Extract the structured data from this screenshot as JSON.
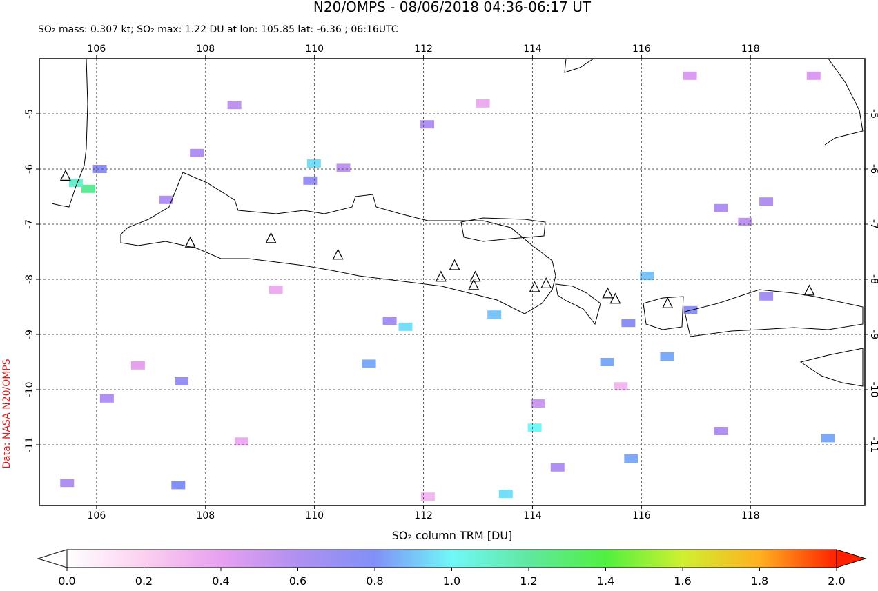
{
  "chart_data": {
    "type": "map",
    "title": "N20/OMPS - 08/06/2018 04:36-06:17 UT",
    "subtitle": "SO₂ mass: 0.307 kt; SO₂ max: 1.22 DU at lon: 105.85 lat: -6.36 ; 06:16UTC",
    "colorbar_label": "SO₂ column TRM [DU]",
    "credit": "Data: NASA N20/OMPS",
    "xlim": [
      104.95,
      120.1
    ],
    "ylim": [
      -12.1,
      -4
    ],
    "xticks": [
      106,
      108,
      110,
      112,
      114,
      116,
      118
    ],
    "yticks": [
      -5,
      -6,
      -7,
      -8,
      -9,
      -10,
      -11
    ],
    "grid": true,
    "clim": [
      0,
      2
    ],
    "colormap": [
      "#ffffff",
      "#fcd0f0",
      "#e8a0f0",
      "#b090f0",
      "#8090f8",
      "#70f8f8",
      "#60e8a0",
      "#50f040",
      "#d0f030",
      "#ffb020",
      "#ff2000"
    ],
    "colorbar_ticks": [
      {
        "value": 0,
        "label": "0.0"
      },
      {
        "value": 0.2,
        "label": "0.2"
      },
      {
        "value": 0.4,
        "label": "0.4"
      },
      {
        "value": 0.6,
        "label": "0.6"
      },
      {
        "value": 0.8,
        "label": "0.8"
      },
      {
        "value": 1,
        "label": "1.0"
      },
      {
        "value": 1.2,
        "label": "1.2"
      },
      {
        "value": 1.4,
        "label": "1.4"
      },
      {
        "value": 1.6,
        "label": "1.6"
      },
      {
        "value": 1.8,
        "label": "1.8"
      },
      {
        "value": 2,
        "label": "2.0"
      }
    ],
    "volcanoes": {
      "lon": [
        107.72,
        109.2,
        110.43,
        112.32,
        112.57,
        112.95,
        112.92,
        114.04,
        114.25,
        115.38,
        115.52,
        116.48,
        119.08,
        105.43
      ],
      "lat": [
        -7.34,
        -7.26,
        -7.56,
        -7.96,
        -7.75,
        -7.96,
        -8.11,
        -8.15,
        -8.08,
        -8.26,
        -8.36,
        -8.44,
        -8.21,
        -6.13
      ]
    },
    "pixels": {
      "lon": [
        105.85,
        105.62,
        109.99,
        114.04,
        113.51,
        111.67,
        113.3,
        116.1,
        116.47,
        115.37,
        115.81,
        119.42,
        111.0,
        107.5,
        107.56,
        106.06,
        109.92,
        117.46,
        118.29,
        117.46,
        118.29,
        116.9,
        115.76,
        111.38,
        107.27,
        107.84,
        112.07,
        108.53,
        106.19,
        105.46,
        114.46,
        110.53,
        117.9,
        114.1,
        106.76,
        109.29,
        113.09,
        116.89,
        119.16,
        112.08,
        108.66,
        115.62
      ],
      "lat": [
        -6.36,
        -6.25,
        -5.9,
        -10.69,
        -11.89,
        -8.86,
        -8.64,
        -7.94,
        -9.4,
        -9.5,
        -11.25,
        -10.88,
        -9.53,
        -11.73,
        -9.85,
        -6.0,
        -6.21,
        -6.71,
        -6.59,
        -10.75,
        -8.31,
        -8.56,
        -8.79,
        -8.75,
        -6.56,
        -5.71,
        -5.19,
        -4.84,
        -10.16,
        -11.69,
        -11.41,
        -5.98,
        -6.96,
        -10.25,
        -9.56,
        -8.19,
        -4.81,
        -4.31,
        -4.31,
        -11.94,
        -10.94,
        -9.94
      ],
      "values": [
        1.22,
        1.1,
        0.95,
        1.0,
        0.95,
        0.95,
        0.9,
        0.9,
        0.85,
        0.85,
        0.85,
        0.85,
        0.85,
        0.8,
        0.7,
        0.75,
        0.7,
        0.6,
        0.6,
        0.6,
        0.65,
        0.75,
        0.75,
        0.65,
        0.6,
        0.6,
        0.6,
        0.55,
        0.6,
        0.6,
        0.6,
        0.55,
        0.55,
        0.5,
        0.4,
        0.35,
        0.35,
        0.45,
        0.45,
        0.3,
        0.35,
        0.3
      ]
    }
  }
}
